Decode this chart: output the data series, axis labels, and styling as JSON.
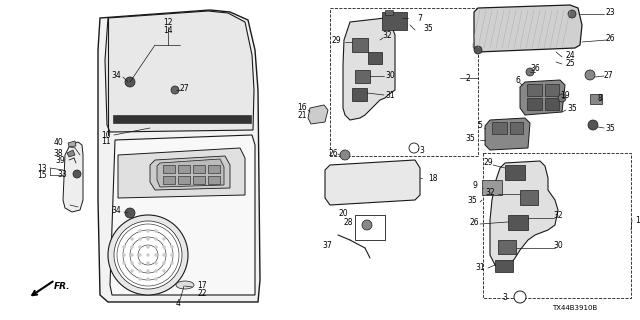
{
  "bg_color": "#ffffff",
  "line_color": "#1a1a1a",
  "part_number": "TX44B3910B",
  "fig_w": 6.4,
  "fig_h": 3.2,
  "dpi": 100
}
